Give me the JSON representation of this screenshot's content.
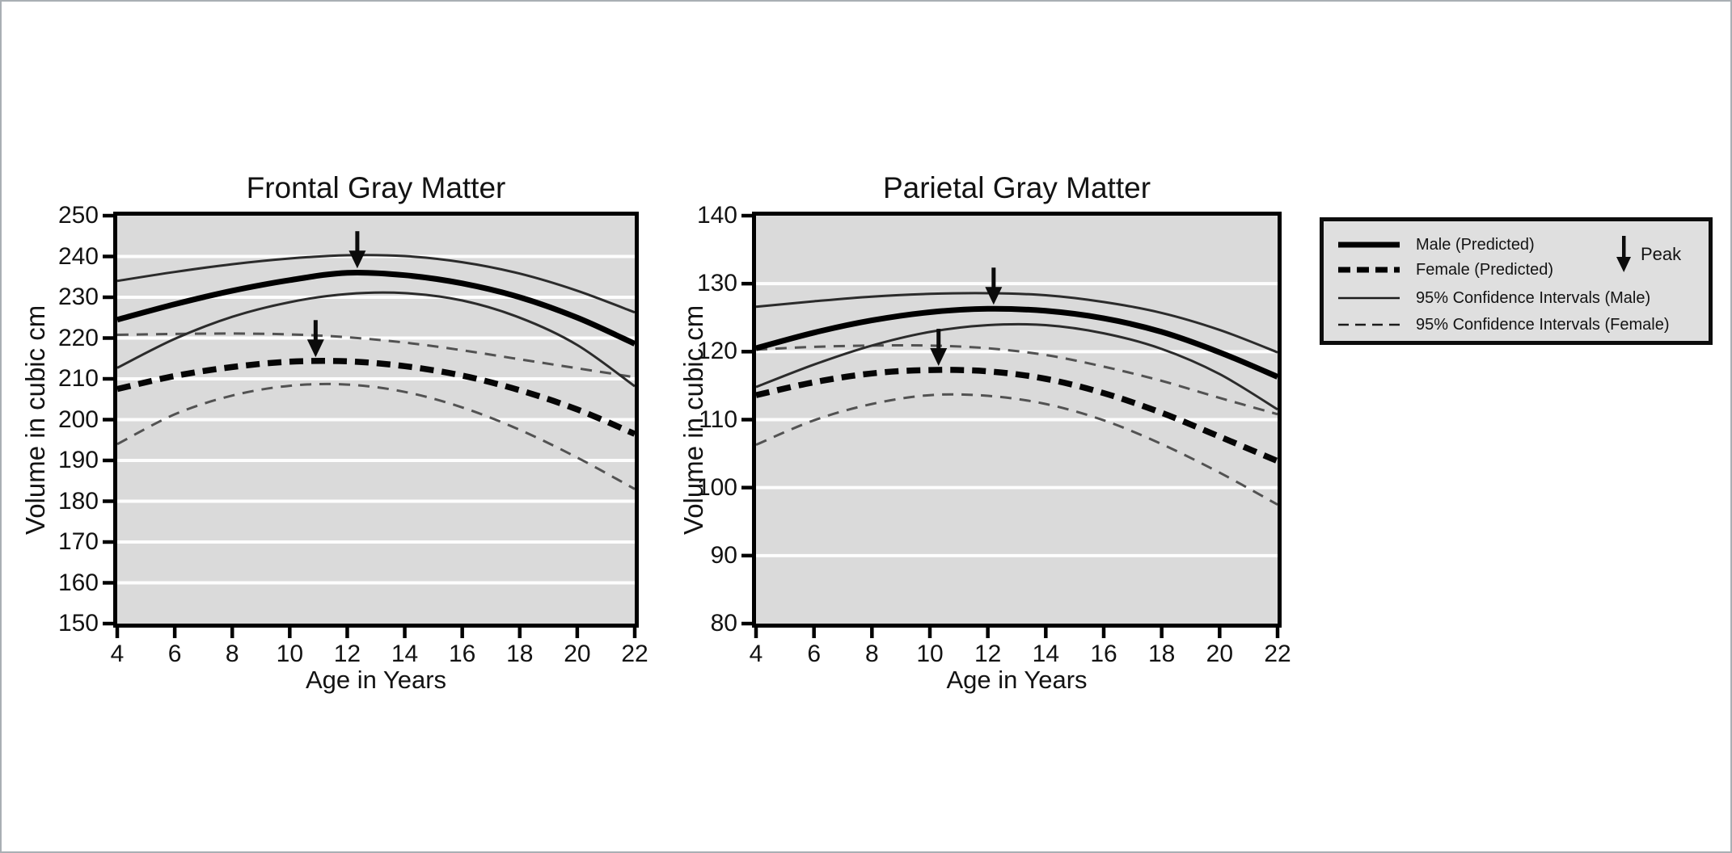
{
  "figure": {
    "background": "#ffffff",
    "frame_color": "#a9afb4",
    "panel_color": "#dadada",
    "gridline_color": "#ffffff",
    "axis_color": "#000000"
  },
  "chart_data": [
    {
      "type": "line",
      "title": "Frontal Gray Matter",
      "xlabel": "Age in Years",
      "ylabel": "Volume in cubic cm",
      "xlim": [
        4,
        22
      ],
      "ylim": [
        150,
        250
      ],
      "xticks": [
        4,
        6,
        8,
        10,
        12,
        14,
        16,
        18,
        20,
        22
      ],
      "yticks": [
        150,
        160,
        170,
        180,
        190,
        200,
        210,
        220,
        230,
        240,
        250
      ],
      "grid": "horizontal white lines on gray panel",
      "legend_position": "outside right",
      "x": [
        4,
        6,
        8,
        10,
        12,
        14,
        16,
        18,
        20,
        22
      ],
      "series": [
        {
          "name": "95% Confidence Intervals (Female) upper",
          "style": "thin-dashed",
          "values": [
            220.8,
            221.0,
            221.1,
            220.9,
            220.2,
            218.9,
            217.0,
            214.8,
            212.6,
            210.4
          ]
        },
        {
          "name": "95% Confidence Intervals (Female) lower",
          "style": "thin-dashed",
          "values": [
            194.0,
            201.3,
            205.9,
            208.3,
            208.6,
            206.8,
            203.0,
            197.5,
            190.7,
            183.0
          ]
        },
        {
          "name": "Female (Predicted)",
          "style": "thick-dashed",
          "values": [
            207.5,
            210.7,
            212.9,
            214.2,
            214.3,
            213.1,
            210.8,
            207.2,
            202.5,
            196.5
          ]
        },
        {
          "name": "95% Confidence Intervals (Male) upper",
          "style": "thin-solid",
          "values": [
            234.0,
            236.2,
            238.1,
            239.5,
            240.3,
            240.1,
            238.6,
            235.8,
            231.6,
            226.3
          ]
        },
        {
          "name": "95% Confidence Intervals (Male) lower",
          "style": "thin-solid",
          "values": [
            212.7,
            219.8,
            225.2,
            228.8,
            230.8,
            231.0,
            229.2,
            225.0,
            218.3,
            208.2
          ]
        },
        {
          "name": "Male (Predicted)",
          "style": "thick-solid",
          "values": [
            224.5,
            228.3,
            231.6,
            234.2,
            236.0,
            235.4,
            233.4,
            230.0,
            225.0,
            218.6
          ]
        }
      ],
      "peaks": [
        {
          "series": "Male (Predicted)",
          "age": 12.35,
          "value": 236.1
        },
        {
          "series": "Female (Predicted)",
          "age": 10.9,
          "value": 214.3
        }
      ]
    },
    {
      "type": "line",
      "title": "Parietal Gray Matter",
      "xlabel": "Age in Years",
      "ylabel": "Volume in cubic cm",
      "xlim": [
        4,
        22
      ],
      "ylim": [
        80,
        140
      ],
      "xticks": [
        4,
        6,
        8,
        10,
        12,
        14,
        16,
        18,
        20,
        22
      ],
      "yticks": [
        80,
        90,
        100,
        110,
        120,
        130,
        140
      ],
      "grid": "horizontal white lines on gray panel",
      "legend_position": "outside right",
      "x": [
        4,
        6,
        8,
        10,
        12,
        14,
        16,
        18,
        20,
        22
      ],
      "series": [
        {
          "name": "95% Confidence Intervals (Female) upper",
          "style": "thin-dashed",
          "values": [
            120.3,
            120.7,
            120.9,
            120.9,
            120.5,
            119.5,
            117.8,
            115.7,
            113.2,
            110.8
          ]
        },
        {
          "name": "95% Confidence Intervals (Female) lower",
          "style": "thin-dashed",
          "values": [
            106.3,
            109.9,
            112.3,
            113.6,
            113.5,
            112.3,
            109.9,
            106.4,
            102.2,
            97.5
          ]
        },
        {
          "name": "Female (Predicted)",
          "style": "thick-dashed",
          "values": [
            113.6,
            115.5,
            116.8,
            117.3,
            117.1,
            116.0,
            113.9,
            111.0,
            107.5,
            103.9
          ]
        },
        {
          "name": "95% Confidence Intervals (Male) upper",
          "style": "thin-solid",
          "values": [
            126.6,
            127.4,
            128.1,
            128.5,
            128.6,
            128.3,
            127.3,
            125.7,
            123.2,
            119.9
          ]
        },
        {
          "name": "95% Confidence Intervals (Male) lower",
          "style": "thin-solid",
          "values": [
            114.8,
            118.1,
            120.9,
            122.9,
            123.9,
            123.9,
            122.7,
            120.4,
            116.7,
            111.5
          ]
        },
        {
          "name": "Male (Predicted)",
          "style": "thick-solid",
          "values": [
            120.5,
            122.8,
            124.6,
            125.8,
            126.3,
            126.0,
            124.9,
            122.9,
            119.9,
            116.3
          ]
        }
      ],
      "peaks": [
        {
          "series": "Male (Predicted)",
          "age": 12.2,
          "value": 126.3
        },
        {
          "series": "Female (Predicted)",
          "age": 10.3,
          "value": 117.3
        }
      ]
    }
  ],
  "legend": {
    "items": [
      {
        "label": "Male (Predicted)",
        "style": "thick-solid"
      },
      {
        "label": "Female (Predicted)",
        "style": "thick-dashed"
      },
      {
        "label": "95% Confidence Intervals (Male)",
        "style": "thin-solid"
      },
      {
        "label": "95% Confidence Intervals (Female)",
        "style": "thin-dashed"
      }
    ],
    "peak_label": "Peak"
  }
}
